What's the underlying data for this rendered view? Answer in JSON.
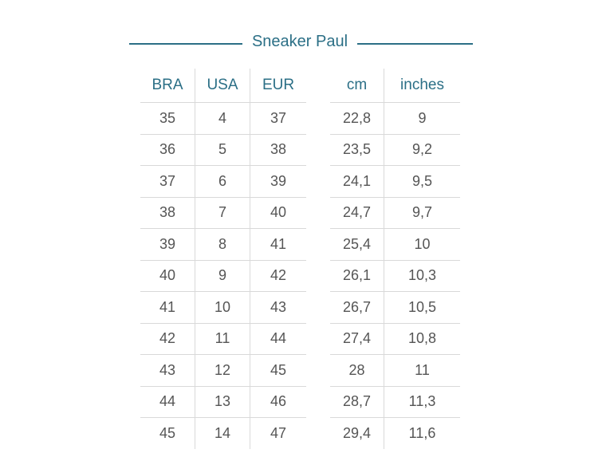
{
  "title": "Sneaker Paul",
  "left_table": {
    "headers": [
      "BRA",
      "USA",
      "EUR"
    ],
    "rows": [
      [
        "35",
        "4",
        "37"
      ],
      [
        "36",
        "5",
        "38"
      ],
      [
        "37",
        "6",
        "39"
      ],
      [
        "38",
        "7",
        "40"
      ],
      [
        "39",
        "8",
        "41"
      ],
      [
        "40",
        "9",
        "42"
      ],
      [
        "41",
        "10",
        "43"
      ],
      [
        "42",
        "11",
        "44"
      ],
      [
        "43",
        "12",
        "45"
      ],
      [
        "44",
        "13",
        "46"
      ],
      [
        "45",
        "14",
        "47"
      ]
    ]
  },
  "right_table": {
    "headers": [
      "cm",
      "inches"
    ],
    "rows": [
      [
        "22,8",
        "9"
      ],
      [
        "23,5",
        "9,2"
      ],
      [
        "24,1",
        "9,5"
      ],
      [
        "24,7",
        "9,7"
      ],
      [
        "25,4",
        "10"
      ],
      [
        "26,1",
        "10,3"
      ],
      [
        "26,7",
        "10,5"
      ],
      [
        "27,4",
        "10,8"
      ],
      [
        "28",
        "11"
      ],
      [
        "28,7",
        "11,3"
      ],
      [
        "29,4",
        "11,6"
      ]
    ]
  },
  "colors": {
    "accent": "#2b6f86",
    "text": "#555555",
    "rule": "#d9d9d9"
  }
}
